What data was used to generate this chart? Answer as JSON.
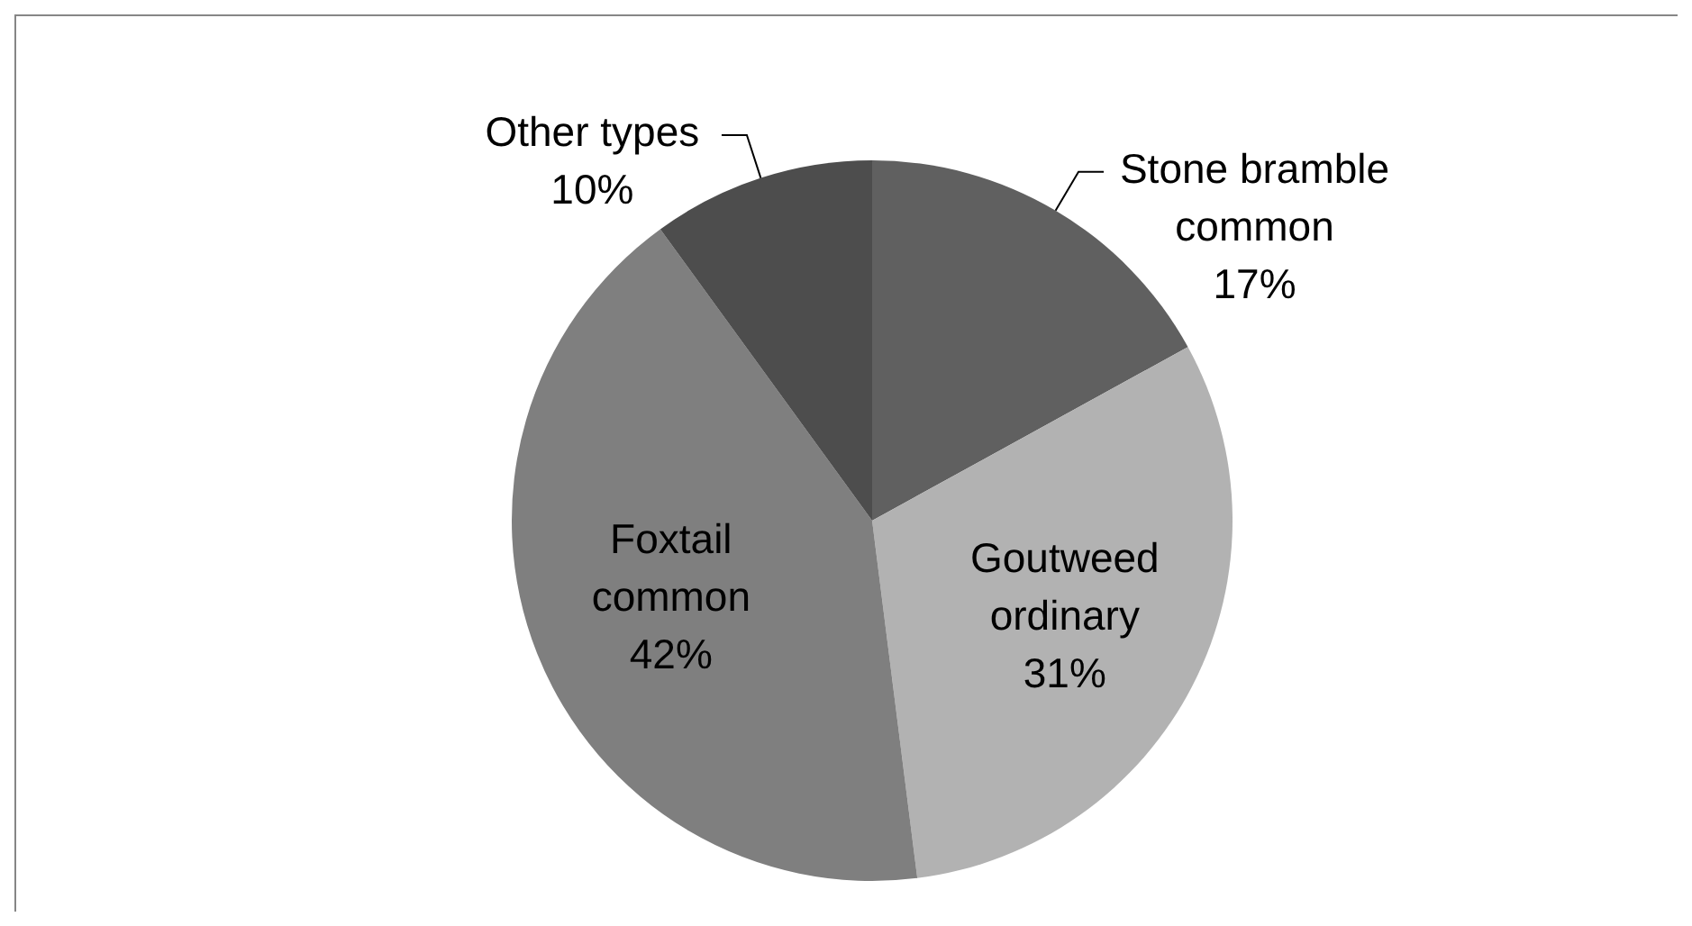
{
  "chart_data": {
    "type": "pie",
    "categories": [
      "Stone bramble common",
      "Goutweed ordinary",
      "Foxtail common",
      "Other types"
    ],
    "values": [
      17,
      31,
      42,
      10
    ],
    "colors": [
      "#606060",
      "#b2b2b2",
      "#7f7f7f",
      "#4d4d4d"
    ],
    "value_labels": [
      "17%",
      "31%",
      "42%",
      "10%"
    ]
  }
}
